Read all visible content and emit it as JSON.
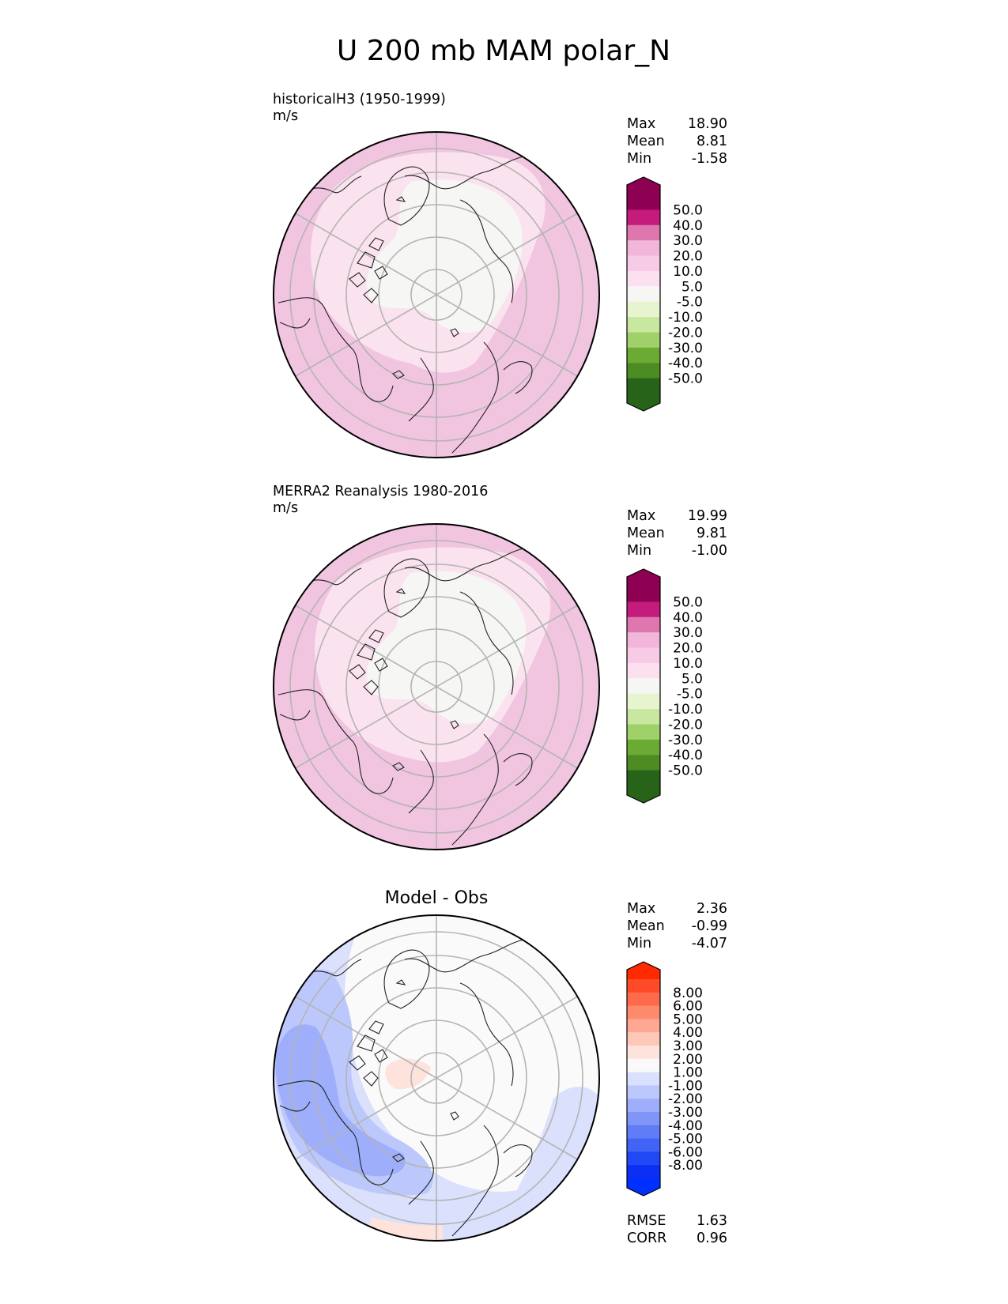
{
  "title": "U 200 mb MAM polar_N",
  "panels": [
    {
      "id": "test",
      "label": "historicalH3 (1950-1999)",
      "units": "m/s",
      "stats": [
        {
          "name": "Max",
          "value": "18.90"
        },
        {
          "name": "Mean",
          "value": "8.81"
        },
        {
          "name": "Min",
          "value": "-1.58"
        }
      ],
      "colorbar": {
        "labels": [
          "50.0",
          "40.0",
          "30.0",
          "20.0",
          "10.0",
          "5.0",
          "-5.0",
          "-10.0",
          "-20.0",
          "-30.0",
          "-40.0",
          "-50.0"
        ],
        "colors": [
          "#8e0152",
          "#c51b7d",
          "#de77ae",
          "#f1b6da",
          "#f7cae6",
          "#fde0ef",
          "#f6f6f4",
          "#e6f5d0",
          "#c9e89f",
          "#9fd06a",
          "#6bab34",
          "#4d8c22",
          "#276419"
        ],
        "upper_arrow": "#8e0152",
        "lower_arrow": "#276419"
      }
    },
    {
      "id": "reference",
      "label": "MERRA2 Reanalysis 1980-2016",
      "units": "m/s",
      "stats": [
        {
          "name": "Max",
          "value": "19.99"
        },
        {
          "name": "Mean",
          "value": "9.81"
        },
        {
          "name": "Min",
          "value": "-1.00"
        }
      ],
      "colorbar": {
        "labels": [
          "50.0",
          "40.0",
          "30.0",
          "20.0",
          "10.0",
          "5.0",
          "-5.0",
          "-10.0",
          "-20.0",
          "-30.0",
          "-40.0",
          "-50.0"
        ],
        "colors": [
          "#8e0152",
          "#c51b7d",
          "#de77ae",
          "#f1b6da",
          "#f7cae6",
          "#fde0ef",
          "#f6f6f4",
          "#e6f5d0",
          "#c9e89f",
          "#9fd06a",
          "#6bab34",
          "#4d8c22",
          "#276419"
        ],
        "upper_arrow": "#8e0152",
        "lower_arrow": "#276419"
      }
    },
    {
      "id": "diff",
      "title": "Model - Obs",
      "stats": [
        {
          "name": "Max",
          "value": "2.36"
        },
        {
          "name": "Mean",
          "value": "-0.99"
        },
        {
          "name": "Min",
          "value": "-4.07"
        }
      ],
      "extra_stats": [
        {
          "name": "RMSE",
          "value": "1.63"
        },
        {
          "name": "CORR",
          "value": "0.96"
        }
      ],
      "colorbar": {
        "labels": [
          "8.00",
          "6.00",
          "5.00",
          "4.00",
          "3.00",
          "2.00",
          "1.00",
          "-1.00",
          "-2.00",
          "-3.00",
          "-4.00",
          "-5.00",
          "-6.00",
          "-8.00"
        ],
        "colors": [
          "#fe4a29",
          "#fe6a4b",
          "#fe8a6e",
          "#fea894",
          "#fec8b8",
          "#fde3dc",
          "#fafafa",
          "#dbe0fd",
          "#bcc8fb",
          "#9eaefa",
          "#7f95f8",
          "#607cf7",
          "#4163f6",
          "#2247f5",
          "#0b2ff4"
        ],
        "upper_arrow": "#ff2a00",
        "lower_arrow": "#0030ff"
      }
    }
  ]
}
